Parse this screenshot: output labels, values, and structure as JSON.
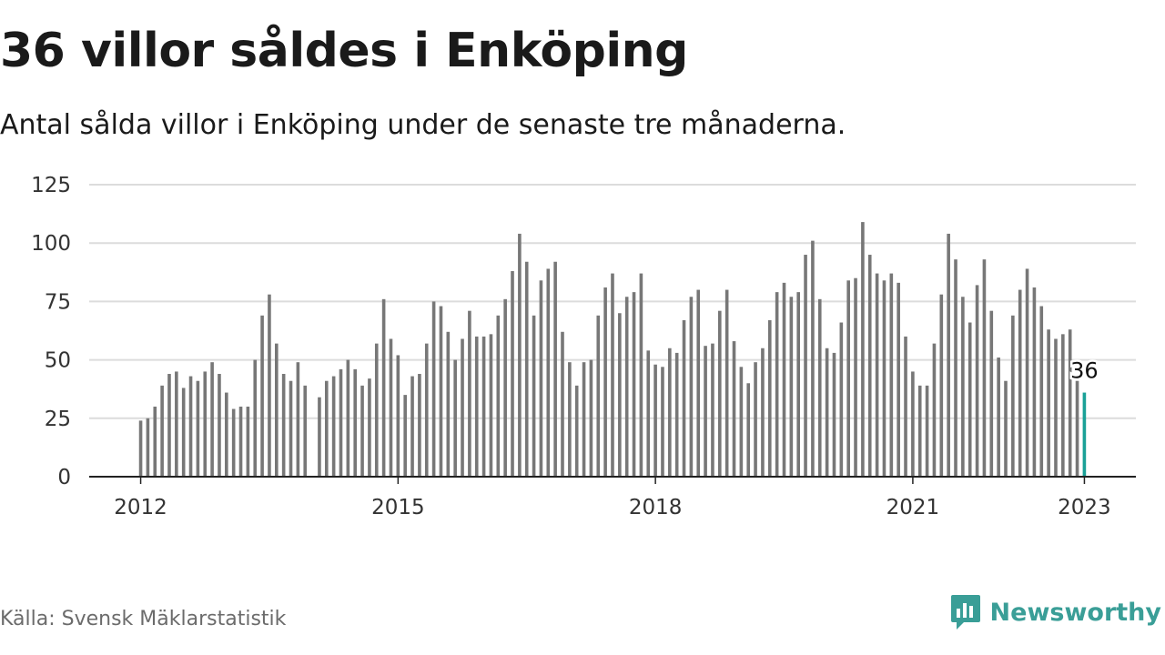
{
  "header": {
    "title": "36 villor såldes i Enköping",
    "subtitle": "Antal sålda villor i Enköping under de senaste tre månaderna."
  },
  "footer": {
    "source": "Källa: Svensk Mäklarstatistik",
    "brand": "Newsworthy",
    "brand_icon": "newsworthy-logo-icon"
  },
  "colors": {
    "bar": "#777777",
    "highlight": "#1aa197",
    "grid": "#dcdcdc",
    "axis": "#222222",
    "brand": "#3a9e97"
  },
  "chart_data": {
    "type": "bar",
    "title": "36 villor såldes i Enköping",
    "subtitle": "Antal sålda villor i Enköping under de senaste tre månaderna.",
    "xlabel": "",
    "ylabel": "",
    "ylim": [
      0,
      125
    ],
    "yticks": [
      0,
      25,
      50,
      75,
      100,
      125
    ],
    "xlim": [
      2011.4,
      2023.6
    ],
    "xticks": [
      2012,
      2015,
      2018,
      2021,
      2023
    ],
    "grid": true,
    "legend": "none",
    "highlight_label": "36",
    "x_start": 2012.0,
    "x_step": 0.08333,
    "values": [
      24,
      25,
      30,
      39,
      44,
      45,
      38,
      43,
      41,
      45,
      49,
      44,
      36,
      29,
      30,
      30,
      50,
      69,
      78,
      57,
      44,
      41,
      49,
      39,
      null,
      34,
      41,
      43,
      46,
      50,
      46,
      39,
      42,
      57,
      76,
      59,
      52,
      35,
      43,
      44,
      57,
      75,
      73,
      62,
      50,
      59,
      71,
      60,
      60,
      61,
      69,
      76,
      88,
      104,
      92,
      69,
      84,
      89,
      92,
      62,
      49,
      39,
      49,
      50,
      69,
      81,
      87,
      70,
      77,
      79,
      87,
      54,
      48,
      47,
      55,
      53,
      67,
      77,
      80,
      56,
      57,
      71,
      80,
      58,
      47,
      40,
      49,
      55,
      67,
      79,
      83,
      77,
      79,
      95,
      101,
      76,
      55,
      53,
      66,
      84,
      85,
      109,
      95,
      87,
      84,
      87,
      83,
      60,
      45,
      39,
      39,
      57,
      78,
      104,
      93,
      77,
      66,
      82,
      93,
      71,
      51,
      41,
      69,
      80,
      89,
      81,
      73,
      63,
      59,
      61,
      63,
      41,
      36
    ]
  }
}
